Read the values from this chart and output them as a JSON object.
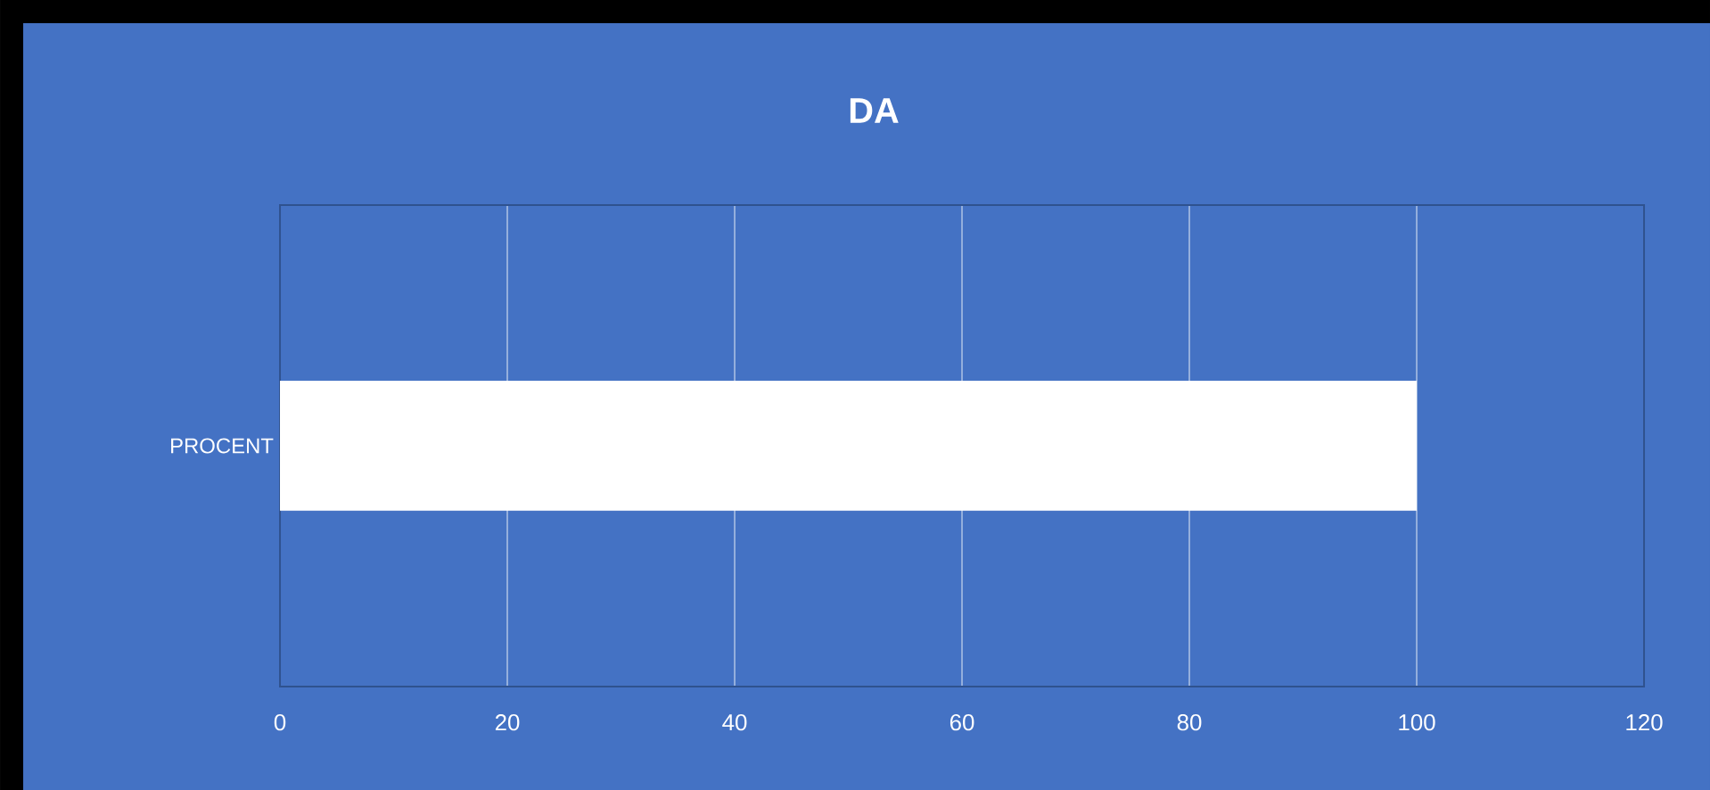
{
  "chart_data": {
    "type": "bar",
    "orientation": "horizontal",
    "title": "DA",
    "categories": [
      "PROCENT"
    ],
    "values": [
      100
    ],
    "color": "#ffffff",
    "xlim": [
      0,
      120
    ],
    "xticks": [
      0,
      20,
      40,
      60,
      80,
      100,
      120
    ],
    "grid": "x"
  }
}
